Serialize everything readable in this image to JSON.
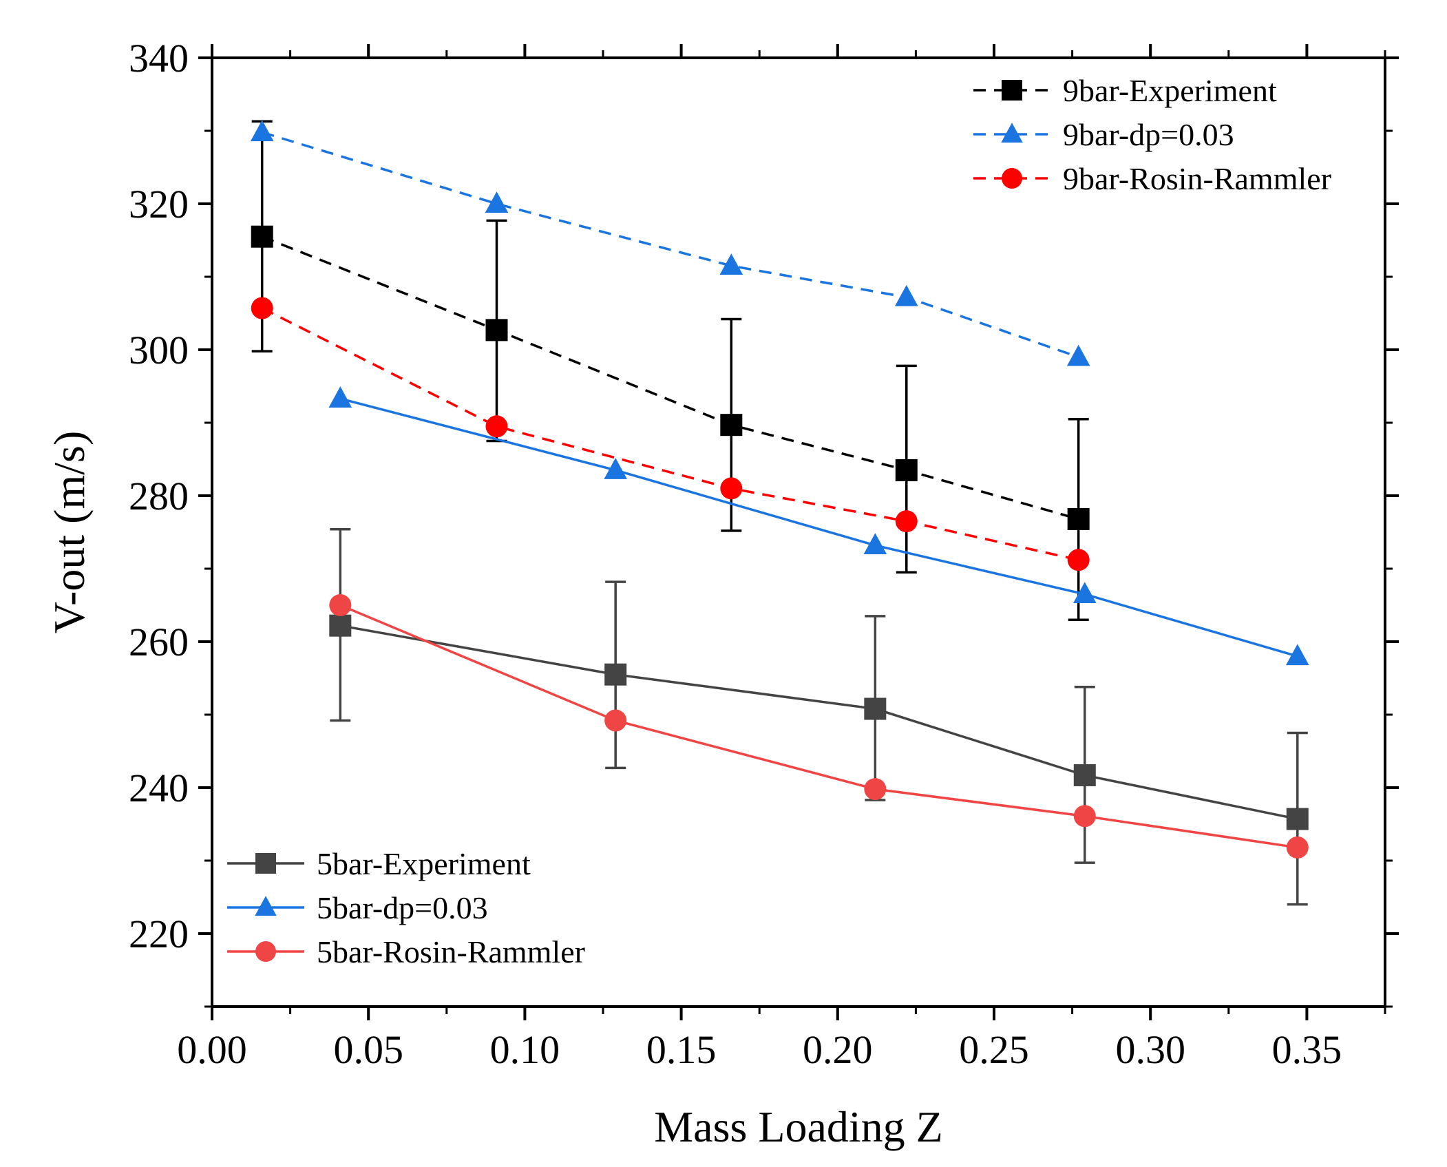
{
  "chart_data": {
    "type": "line",
    "title": "",
    "xlabel": "Mass Loading Z",
    "ylabel": "V-out (m/s)",
    "xlim": [
      0.0,
      0.375
    ],
    "ylim": [
      210,
      340
    ],
    "xticks": [
      "0.00",
      "0.05",
      "0.10",
      "0.15",
      "0.20",
      "0.25",
      "0.30",
      "0.35"
    ],
    "yticks": [
      "220",
      "240",
      "260",
      "280",
      "300",
      "320",
      "340"
    ],
    "grid": false,
    "legends": [
      {
        "position": "top-right",
        "entries": [
          "9bar-Experiment",
          "9bar-dp=0.03",
          "9bar-Rosin-Rammler"
        ]
      },
      {
        "position": "bottom-left",
        "entries": [
          "5bar-Experiment",
          "5bar-dp=0.03",
          "5bar-Rosin-Rammler"
        ]
      }
    ],
    "series": [
      {
        "name": "9bar-Experiment",
        "color": "#000000",
        "marker": "square",
        "line": "dashed",
        "x": [
          0.016,
          0.091,
          0.166,
          0.222,
          0.277
        ],
        "y": [
          315.5,
          302.7,
          289.7,
          283.5,
          276.8
        ],
        "error_low": [
          299.8,
          287.5,
          275.2,
          269.5,
          263.0
        ],
        "error_high": [
          331.3,
          317.7,
          304.2,
          297.8,
          290.5
        ]
      },
      {
        "name": "9bar-dp=0.03",
        "color": "#1a75e0",
        "marker": "triangle",
        "line": "dashed",
        "x": [
          0.016,
          0.091,
          0.166,
          0.222,
          0.277
        ],
        "y": [
          329.8,
          320.0,
          311.5,
          307.2,
          299.0
        ]
      },
      {
        "name": "9bar-Rosin-Rammler",
        "color": "#ff0000",
        "marker": "circle",
        "line": "dashed",
        "x": [
          0.016,
          0.091,
          0.166,
          0.222,
          0.277
        ],
        "y": [
          305.7,
          289.5,
          281.0,
          276.5,
          271.2
        ]
      },
      {
        "name": "5bar-Experiment",
        "color": "#444444",
        "marker": "square",
        "line": "solid",
        "x": [
          0.041,
          0.129,
          0.212,
          0.279,
          0.347
        ],
        "y": [
          262.2,
          255.5,
          250.8,
          241.7,
          235.7
        ],
        "error_low": [
          249.2,
          242.7,
          238.3,
          229.7,
          224.0
        ],
        "error_high": [
          275.4,
          268.2,
          263.5,
          253.8,
          247.5
        ]
      },
      {
        "name": "5bar-dp=0.03",
        "color": "#1a75e0",
        "marker": "triangle",
        "line": "solid",
        "x": [
          0.041,
          0.129,
          0.212,
          0.279,
          0.347
        ],
        "y": [
          293.3,
          283.5,
          273.2,
          266.5,
          258.0
        ]
      },
      {
        "name": "5bar-Rosin-Rammler",
        "color": "#f04545",
        "marker": "circle",
        "line": "solid",
        "x": [
          0.041,
          0.129,
          0.212,
          0.279,
          0.347
        ],
        "y": [
          265.0,
          249.2,
          239.8,
          236.1,
          231.8
        ]
      }
    ]
  }
}
